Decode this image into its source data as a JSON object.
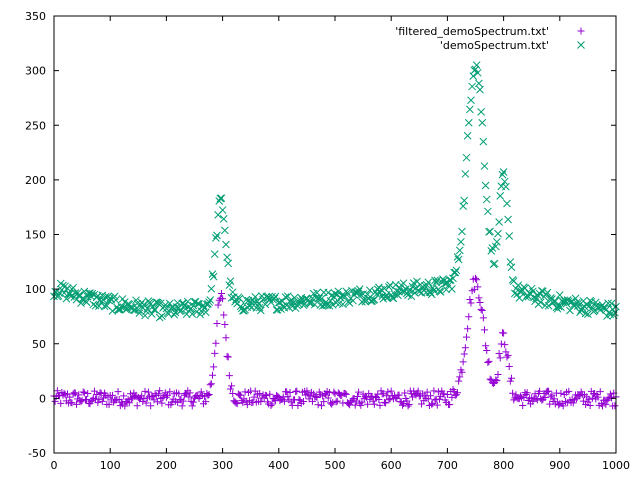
{
  "chart_data": {
    "type": "scatter",
    "title": "",
    "xlabel": "",
    "ylabel": "",
    "xlim": [
      0,
      1000
    ],
    "ylim": [
      -50,
      350
    ],
    "x_ticks": [
      0,
      100,
      200,
      300,
      400,
      500,
      600,
      700,
      800,
      900,
      1000
    ],
    "y_ticks": [
      -50,
      0,
      50,
      100,
      150,
      200,
      250,
      300,
      350
    ],
    "grid": false,
    "legend_position": "top-right",
    "series": [
      {
        "name": "'filtered_demoSpectrum.txt'",
        "marker": "plus",
        "color": "#9400d3",
        "baseline": 0,
        "noise": 7,
        "peaks": [
          {
            "center": 297,
            "height": 92,
            "width": 9
          },
          {
            "center": 750,
            "height": 107,
            "width": 15
          },
          {
            "center": 800,
            "height": 55,
            "width": 8
          }
        ],
        "step": 2
      },
      {
        "name": "'demoSpectrum.txt'",
        "marker": "cross",
        "color": "#009e73",
        "baseline_points": [
          [
            0,
            100
          ],
          [
            100,
            87
          ],
          [
            200,
            80
          ],
          [
            300,
            85
          ],
          [
            400,
            88
          ],
          [
            500,
            92
          ],
          [
            600,
            98
          ],
          [
            700,
            103
          ],
          [
            800,
            100
          ],
          [
            900,
            88
          ],
          [
            1000,
            80
          ]
        ],
        "noise": 7,
        "peaks": [
          {
            "center": 297,
            "height": 95,
            "width": 9
          },
          {
            "center": 750,
            "height": 205,
            "width": 15
          },
          {
            "center": 800,
            "height": 100,
            "width": 8
          }
        ],
        "step": 2
      }
    ]
  }
}
